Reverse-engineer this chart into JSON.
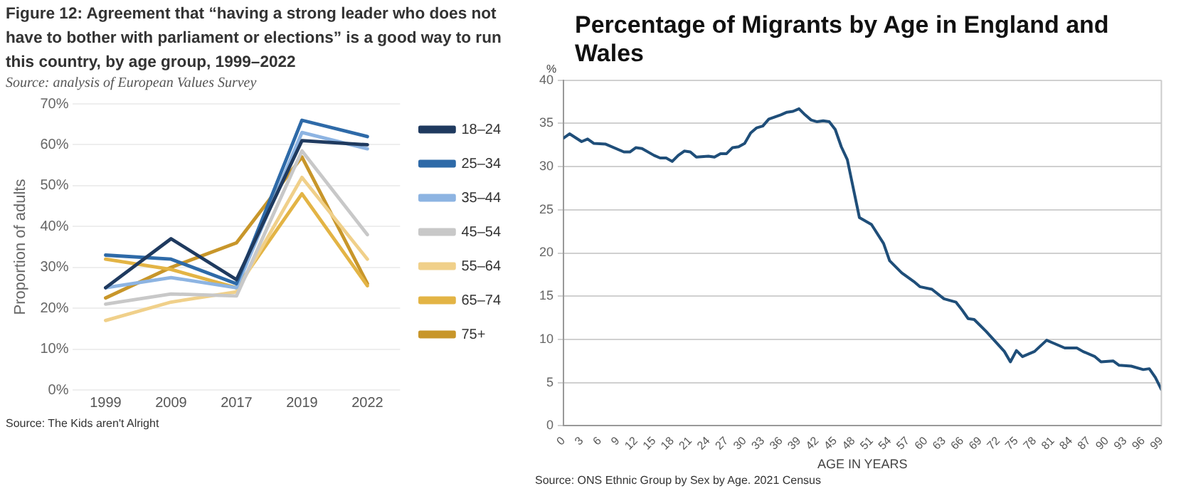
{
  "chart_data": [
    {
      "type": "line",
      "title": "Figure 12: Agreement that “having a strong leader who does not have to bother with parliament or elections” is a good way to run this country, by age group, 1999–2022",
      "subtitle": "Source: analysis of European Values Survey",
      "ylabel": "Proportion of adults",
      "annotations": [
        "Source: The Kids aren't Alright"
      ],
      "categories": [
        "1999",
        "2009",
        "2017",
        "2019",
        "2022"
      ],
      "series": [
        {
          "name": "18–24",
          "color": "#1f3a5f",
          "values": [
            25,
            37,
            27,
            61,
            60
          ]
        },
        {
          "name": "25–34",
          "color": "#2e6aa8",
          "values": [
            33,
            32,
            26,
            66,
            62
          ]
        },
        {
          "name": "35–44",
          "color": "#8db4e2",
          "values": [
            25,
            27.5,
            25,
            63,
            59
          ]
        },
        {
          "name": "45–54",
          "color": "#c8c8c8",
          "values": [
            21,
            23.5,
            23,
            58.5,
            38
          ]
        },
        {
          "name": "55–64",
          "color": "#f0d08a",
          "values": [
            17,
            21.5,
            24,
            52,
            32
          ]
        },
        {
          "name": "65–74",
          "color": "#e3b445",
          "values": [
            32,
            29.5,
            25,
            48,
            25.5
          ]
        },
        {
          "name": "75+",
          "color": "#c8962a",
          "values": [
            22.5,
            30,
            36,
            57,
            26
          ]
        }
      ],
      "ylim": [
        0,
        70
      ],
      "yticks": [
        {
          "value": 0,
          "label": "0%"
        },
        {
          "value": 10,
          "label": "10%"
        },
        {
          "value": 20,
          "label": "20%"
        },
        {
          "value": 30,
          "label": "30%"
        },
        {
          "value": 40,
          "label": "40%"
        },
        {
          "value": 50,
          "label": "50%"
        },
        {
          "value": 60,
          "label": "60%"
        },
        {
          "value": 70,
          "label": "70%"
        }
      ],
      "grid": "y",
      "legend": "right",
      "marker": "none"
    },
    {
      "type": "line",
      "title": "Percentage of Migrants by Age in England and Wales",
      "xlabel": "AGE IN YEARS",
      "ylabel": "%",
      "annotations": [
        "Source: ONS Ethnic Group by Sex by Age.  2021 Census"
      ],
      "x": [
        0,
        1,
        3,
        4,
        5,
        7,
        10,
        11,
        12,
        13,
        15,
        16,
        17,
        18,
        19,
        20,
        21,
        22,
        24,
        25,
        26,
        27,
        28,
        29,
        30,
        31,
        32,
        33,
        34,
        36,
        37,
        38,
        39,
        40,
        41,
        42,
        43,
        44,
        45,
        46,
        47,
        49,
        51,
        53,
        54,
        56,
        58,
        59,
        61,
        63,
        65,
        66,
        67,
        68,
        70,
        73,
        74,
        75,
        76,
        78,
        80,
        81,
        83,
        85,
        86,
        88,
        89,
        91,
        92,
        94,
        96,
        97,
        98,
        99
      ],
      "values": [
        33.3,
        33.8,
        32.9,
        33.2,
        32.7,
        32.6,
        31.7,
        31.7,
        32.2,
        32.1,
        31.3,
        31.0,
        31.0,
        30.6,
        31.3,
        31.8,
        31.7,
        31.1,
        31.2,
        31.1,
        31.5,
        31.5,
        32.2,
        32.3,
        32.7,
        33.9,
        34.5,
        34.7,
        35.5,
        36.0,
        36.3,
        36.4,
        36.7,
        36.0,
        35.4,
        35.2,
        35.3,
        35.2,
        34.3,
        32.3,
        30.8,
        24.1,
        23.3,
        21.1,
        19.1,
        17.7,
        16.7,
        16.1,
        15.8,
        14.7,
        14.3,
        13.4,
        12.4,
        12.3,
        10.9,
        8.6,
        7.4,
        8.7,
        8.0,
        8.6,
        9.9,
        9.6,
        9.0,
        9.0,
        8.6,
        8.0,
        7.4,
        7.5,
        7.0,
        6.9,
        6.5,
        6.6,
        5.6,
        4.2
      ],
      "color": "#1f4e79",
      "xlim": [
        0,
        99
      ],
      "xticks": [
        0,
        3,
        6,
        9,
        12,
        15,
        18,
        21,
        24,
        27,
        30,
        33,
        36,
        39,
        42,
        45,
        48,
        51,
        54,
        57,
        60,
        63,
        66,
        69,
        72,
        75,
        78,
        81,
        84,
        87,
        90,
        93,
        96,
        99
      ],
      "ylim": [
        0,
        40
      ],
      "yticks": [
        0,
        5,
        10,
        15,
        20,
        25,
        30,
        35,
        40
      ],
      "grid": "y"
    }
  ]
}
